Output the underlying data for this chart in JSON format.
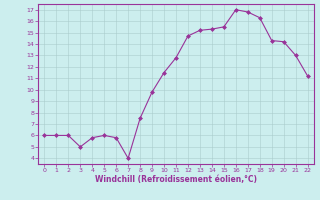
{
  "x": [
    0,
    1,
    2,
    3,
    4,
    5,
    6,
    7,
    8,
    9,
    10,
    11,
    12,
    13,
    14,
    15,
    16,
    17,
    18,
    19,
    20,
    21,
    22
  ],
  "y": [
    6,
    6,
    6,
    5,
    5.8,
    6,
    5.8,
    4,
    7.5,
    9.8,
    11.5,
    12.8,
    14.7,
    15.2,
    15.3,
    15.5,
    17.0,
    16.8,
    16.3,
    14.3,
    14.2,
    13.0,
    11.2
  ],
  "line_color": "#993399",
  "marker_color": "#993399",
  "bg_color": "#cceeee",
  "grid_color": "#aacccc",
  "xlabel": "Windchill (Refroidissement éolien,°C)",
  "xlabel_color": "#993399",
  "yticks": [
    4,
    5,
    6,
    7,
    8,
    9,
    10,
    11,
    12,
    13,
    14,
    15,
    16,
    17
  ],
  "xticks": [
    0,
    1,
    2,
    3,
    4,
    5,
    6,
    7,
    8,
    9,
    10,
    11,
    12,
    13,
    14,
    15,
    16,
    17,
    18,
    19,
    20,
    21,
    22
  ],
  "ylim": [
    3.5,
    17.5
  ],
  "xlim": [
    -0.5,
    22.5
  ],
  "tick_color": "#993399",
  "font_color": "#993399"
}
